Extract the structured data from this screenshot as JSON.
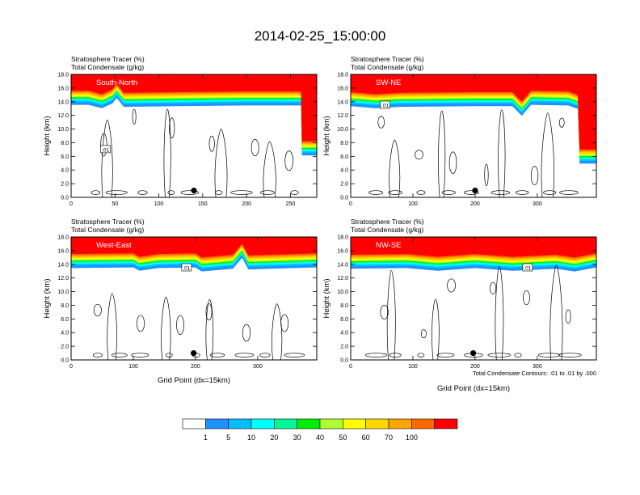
{
  "title": "2014-02-25_15:00:00",
  "colors": {
    "levels": [
      "#ffffff",
      "#1e90ff",
      "#00bfff",
      "#00ffff",
      "#00fa9a",
      "#00ee00",
      "#adff2f",
      "#ffff00",
      "#ffd700",
      "#ffa500",
      "#ff6a00",
      "#ff0000"
    ],
    "contour": "#000000",
    "marker": "#000000"
  },
  "colorbar": {
    "labels": [
      "1",
      "5",
      "10",
      "20",
      "30",
      "40",
      "50",
      "60",
      "70",
      "100"
    ]
  },
  "contour_note": "Total Condensate Contours: .01 to .01 by .000",
  "chart_data": [
    {
      "type": "heatmap",
      "panel_label": "South-North",
      "title_line1": "Stratosphere Tracer   (%)",
      "title_line2": "Total Condensate   (g/kg)",
      "xlabel": "",
      "ylabel": "Height (km)",
      "xlim": [
        0,
        280
      ],
      "ylim": [
        0,
        18
      ],
      "xticks": [
        "0",
        "50",
        "100",
        "150",
        "200",
        "250"
      ],
      "xtick_values": [
        0,
        50,
        100,
        150,
        200,
        250
      ],
      "yticks": [
        "0.0",
        "2.0",
        "4.0",
        "6.0",
        "8.0",
        "10.0",
        "12.0",
        "14.0",
        "16.0",
        "18.0"
      ],
      "tropopause_km": [
        [
          0,
          15.4
        ],
        [
          20,
          15.4
        ],
        [
          35,
          14.9
        ],
        [
          47,
          15.6
        ],
        [
          52,
          16.4
        ],
        [
          60,
          15.1
        ],
        [
          120,
          15.2
        ],
        [
          200,
          15.3
        ],
        [
          262,
          15.3
        ],
        [
          263,
          8.0
        ],
        [
          280,
          8.0
        ]
      ],
      "contour_label": ".01",
      "marker": [
        140,
        1.0
      ]
    },
    {
      "type": "heatmap",
      "panel_label": "SW-NE",
      "title_line1": "Stratosphere Tracer   (%)",
      "title_line2": "Total Condensate   (g/kg)",
      "xlabel": "",
      "ylabel": "Height (km)",
      "xlim": [
        0,
        395
      ],
      "ylim": [
        0,
        18
      ],
      "xticks": [
        "0",
        "100",
        "200",
        "300"
      ],
      "xtick_values": [
        0,
        100,
        200,
        300
      ],
      "yticks": [
        "0.0",
        "2.0",
        "4.0",
        "6.0",
        "8.0",
        "10.0",
        "12.0",
        "14.0",
        "16.0",
        "18.0"
      ],
      "tropopause_km": [
        [
          0,
          15.2
        ],
        [
          40,
          14.9
        ],
        [
          80,
          15.1
        ],
        [
          200,
          15.2
        ],
        [
          260,
          15.2
        ],
        [
          275,
          13.8
        ],
        [
          290,
          15.4
        ],
        [
          350,
          15.3
        ],
        [
          365,
          14.8
        ],
        [
          368,
          6.8
        ],
        [
          395,
          6.8
        ]
      ],
      "contour_label": ".01",
      "marker": [
        200,
        1.0
      ]
    },
    {
      "type": "heatmap",
      "panel_label": "West-East",
      "title_line1": "Stratosphere Tracer   (%)",
      "title_line2": "Total Condensate   (g/kg)",
      "xlabel": "Grid Point (dx=15km)",
      "ylabel": "Height (km)",
      "xlim": [
        0,
        395
      ],
      "ylim": [
        0,
        18
      ],
      "xticks": [
        "0",
        "100",
        "200",
        "300"
      ],
      "xtick_values": [
        0,
        100,
        200,
        300
      ],
      "yticks": [
        "0.0",
        "2.0",
        "4.0",
        "6.0",
        "8.0",
        "10.0",
        "12.0",
        "14.0",
        "16.0",
        "18.0"
      ],
      "tropopause_km": [
        [
          0,
          15.3
        ],
        [
          100,
          15.4
        ],
        [
          110,
          14.9
        ],
        [
          140,
          15.3
        ],
        [
          200,
          15.4
        ],
        [
          210,
          14.8
        ],
        [
          260,
          15.2
        ],
        [
          275,
          16.8
        ],
        [
          285,
          15.1
        ],
        [
          395,
          15.4
        ]
      ],
      "contour_label": ".01",
      "marker": [
        197,
        1.0
      ]
    },
    {
      "type": "heatmap",
      "panel_label": "NW-SE",
      "title_line1": "Stratosphere Tracer   (%)",
      "title_line2": "Total Condensate   (g/kg)",
      "xlabel": "Grid Point (dx=15km)",
      "ylabel": "Height (km)",
      "xlim": [
        0,
        395
      ],
      "ylim": [
        0,
        18
      ],
      "xticks": [
        "0",
        "100",
        "200",
        "300"
      ],
      "xtick_values": [
        0,
        100,
        200,
        300
      ],
      "yticks": [
        "0.0",
        "2.0",
        "4.0",
        "6.0",
        "8.0",
        "10.0",
        "12.0",
        "14.0",
        "16.0",
        "18.0"
      ],
      "tropopause_km": [
        [
          0,
          15.2
        ],
        [
          90,
          15.3
        ],
        [
          140,
          14.9
        ],
        [
          200,
          15.3
        ],
        [
          260,
          14.9
        ],
        [
          330,
          15.2
        ],
        [
          360,
          14.8
        ],
        [
          395,
          15.4
        ]
      ],
      "contour_label": ".01",
      "marker": [
        197,
        1.0
      ]
    }
  ]
}
